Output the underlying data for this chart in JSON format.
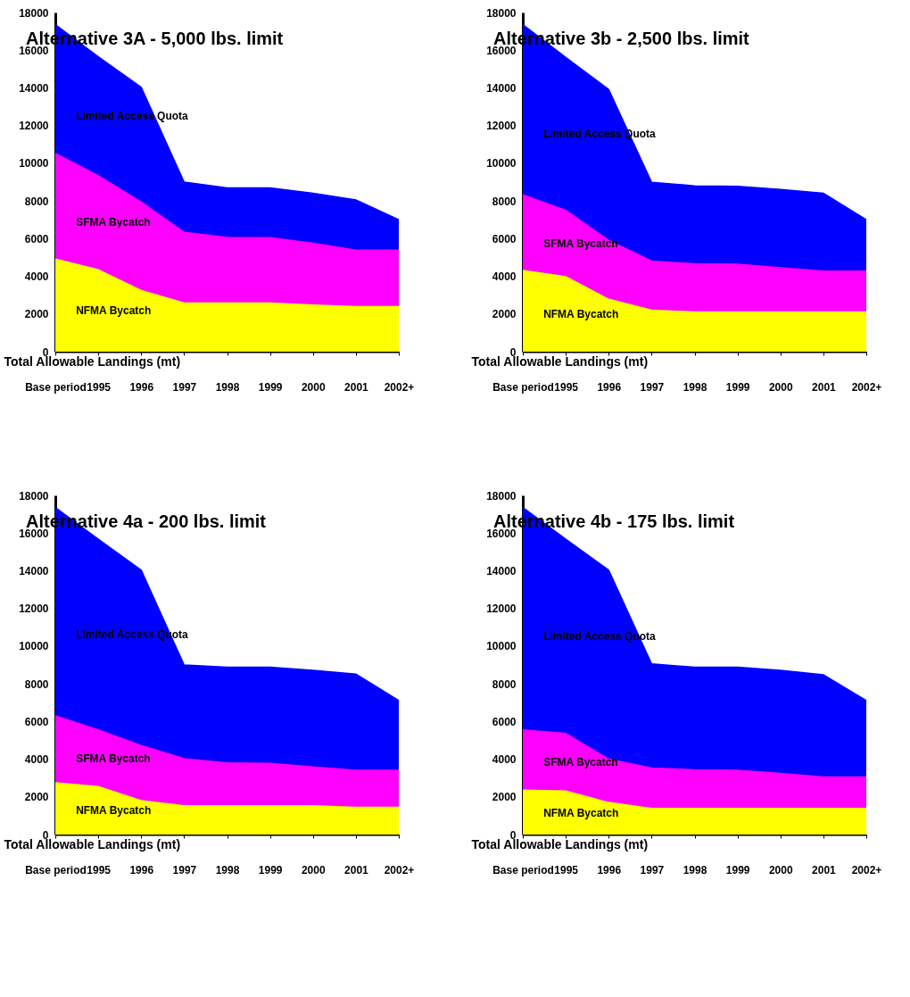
{
  "chart_data": [
    {
      "type": "area",
      "stacked": true,
      "title": "Alternative 3A - 5,000 lbs. limit",
      "ylabel": "Total Allowable Landings (mt)",
      "categories": [
        "Base period",
        "1995",
        "1996",
        "1997",
        "1998",
        "1999",
        "2000",
        "2001",
        "2002+"
      ],
      "ylim": [
        0,
        18000
      ],
      "yticks": [
        0,
        2000,
        4000,
        6000,
        8000,
        10000,
        12000,
        14000,
        16000,
        18000
      ],
      "series": [
        {
          "name": "NFMA Bycatch",
          "color": "#ffff00",
          "values": [
            4920,
            4350,
            3250,
            2580,
            2580,
            2580,
            2470,
            2390,
            2390
          ]
        },
        {
          "name": "SFMA Bycatch",
          "color": "#ff00ff",
          "values": [
            5600,
            4990,
            4690,
            3750,
            3480,
            3470,
            3280,
            3000,
            3000
          ]
        },
        {
          "name": "Limited Access Quota",
          "color": "#0000ff",
          "values": [
            6840,
            6310,
            6090,
            2670,
            2630,
            2640,
            2660,
            2660,
            1610
          ]
        }
      ]
    },
    {
      "type": "area",
      "stacked": true,
      "title": "Alternative 3b - 2,500 lbs. limit",
      "ylabel": "Total Allowable Landings (mt)",
      "categories": [
        "Base period",
        "1995",
        "1996",
        "1997",
        "1998",
        "1999",
        "2000",
        "2001",
        "2002+"
      ],
      "ylim": [
        0,
        18000
      ],
      "yticks": [
        0,
        2000,
        4000,
        6000,
        8000,
        10000,
        12000,
        14000,
        16000,
        18000
      ],
      "series": [
        {
          "name": "NFMA Bycatch",
          "color": "#ffff00",
          "values": [
            4310,
            3980,
            2780,
            2200,
            2110,
            2110,
            2110,
            2110,
            2110
          ]
        },
        {
          "name": "SFMA Bycatch",
          "color": "#ff00ff",
          "values": [
            4020,
            3520,
            3120,
            2610,
            2550,
            2530,
            2340,
            2160,
            2160
          ]
        },
        {
          "name": "Limited Access Quota",
          "color": "#0000ff",
          "values": [
            9030,
            8120,
            8020,
            4180,
            4140,
            4140,
            4160,
            4140,
            2730
          ]
        }
      ]
    },
    {
      "type": "area",
      "stacked": true,
      "title": "Alternative 4a - 200 lbs. limit",
      "ylabel": "Total Allowable Landings (mt)",
      "categories": [
        "Base period",
        "1995",
        "1996",
        "1997",
        "1998",
        "1999",
        "2000",
        "2001",
        "2002+"
      ],
      "ylim": [
        0,
        18000
      ],
      "yticks": [
        0,
        2000,
        4000,
        6000,
        8000,
        10000,
        12000,
        14000,
        16000,
        18000
      ],
      "series": [
        {
          "name": "NFMA Bycatch",
          "color": "#ffff00",
          "values": [
            2750,
            2550,
            1800,
            1530,
            1530,
            1530,
            1530,
            1450,
            1450
          ]
        },
        {
          "name": "SFMA Bycatch",
          "color": "#ff00ff",
          "values": [
            3550,
            3000,
            2930,
            2500,
            2270,
            2250,
            2060,
            1960,
            1960
          ]
        },
        {
          "name": "Limited Access Quota",
          "color": "#0000ff",
          "values": [
            11060,
            10120,
            9300,
            4970,
            5080,
            5100,
            5130,
            5110,
            3700
          ]
        }
      ]
    },
    {
      "type": "area",
      "stacked": true,
      "title": "Alternative 4b - 175 lbs. limit",
      "ylabel": "Total Allowable Landings (mt)",
      "categories": [
        "Base period",
        "1995",
        "1996",
        "1997",
        "1998",
        "1999",
        "2000",
        "2001",
        "2002+"
      ],
      "ylim": [
        0,
        18000
      ],
      "yticks": [
        0,
        2000,
        4000,
        6000,
        8000,
        10000,
        12000,
        14000,
        16000,
        18000
      ],
      "series": [
        {
          "name": "NFMA Bycatch",
          "color": "#ffff00",
          "values": [
            2360,
            2310,
            1700,
            1380,
            1380,
            1380,
            1380,
            1380,
            1380
          ]
        },
        {
          "name": "SFMA Bycatch",
          "color": "#ff00ff",
          "values": [
            3190,
            3050,
            2300,
            2150,
            2060,
            2030,
            1870,
            1670,
            1670
          ]
        },
        {
          "name": "Limited Access Quota",
          "color": "#0000ff",
          "values": [
            11810,
            10310,
            10030,
            5530,
            5440,
            5470,
            5470,
            5430,
            4060
          ]
        }
      ]
    }
  ]
}
